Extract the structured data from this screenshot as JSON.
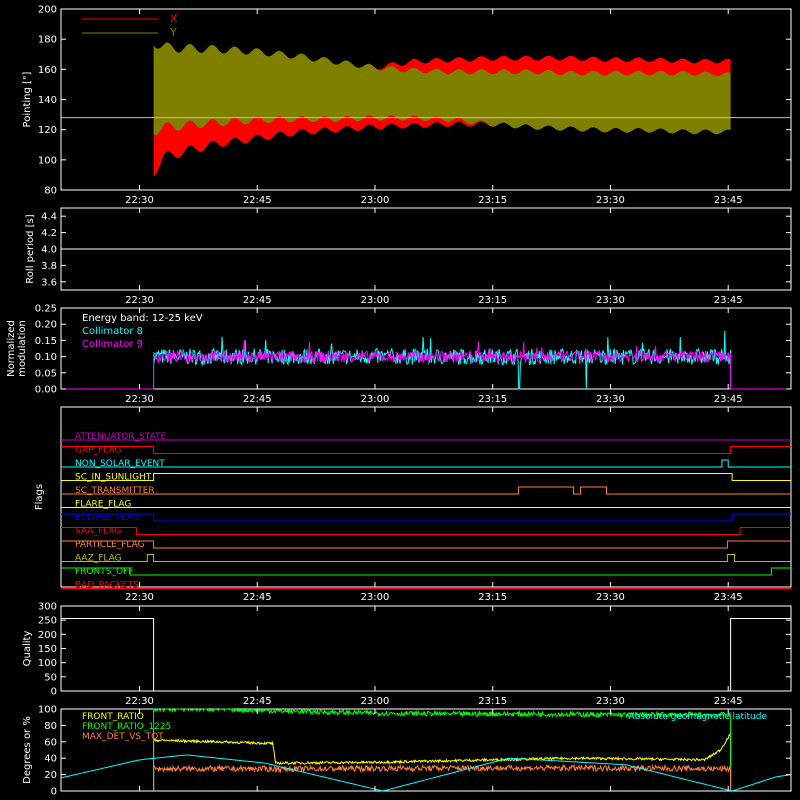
{
  "time_axis": {
    "range": [
      "22:20",
      "23:53"
    ],
    "tick_labels": [
      "22:30",
      "22:45",
      "23:00",
      "23:15",
      "23:30",
      "23:45"
    ],
    "tick_values_min": [
      10,
      25,
      40,
      55,
      70,
      85
    ],
    "range_min": [
      0,
      93
    ]
  },
  "colors": {
    "red": "#ff0000",
    "olive": "#7f7f00",
    "white": "#ffffff",
    "cyan": "#00ffff",
    "magenta": "#ff00ff",
    "orange": "#ff7f3f",
    "yellow": "#ffff00",
    "blue": "#0000ff",
    "green": "#00ff00",
    "flag_olive": "#bfbf00",
    "purple": "#c000c0"
  },
  "chart_data": [
    {
      "type": "area",
      "ylabel": "Pointing [\"]",
      "ylim": [
        80,
        200
      ],
      "y_ticks": [
        80,
        100,
        120,
        140,
        160,
        180,
        200
      ],
      "baseline": 128,
      "legend": [
        {
          "name": "X",
          "color": "#ff0000"
        },
        {
          "name": "Y",
          "color": "#7f7f00"
        }
      ],
      "series": [
        {
          "name": "X",
          "x": [
            11.8,
            13,
            16,
            20,
            25,
            30,
            35,
            40,
            45,
            50,
            55,
            60,
            65,
            70,
            75,
            80,
            85.3
          ],
          "y_upper": [
            130,
            125,
            127,
            131,
            138,
            148,
            157,
            163,
            167,
            168,
            169,
            169,
            169,
            168,
            168,
            167,
            167
          ],
          "y_lower": [
            88,
            98,
            103,
            108,
            112,
            116,
            118,
            120,
            121,
            122,
            122,
            122,
            122,
            122,
            122,
            122,
            122
          ]
        },
        {
          "name": "Y",
          "x": [
            11.8,
            13,
            16,
            20,
            25,
            30,
            35,
            40,
            45,
            50,
            55,
            60,
            65,
            70,
            75,
            80,
            85.3
          ],
          "y_upper": [
            182,
            178,
            177,
            176,
            174,
            171,
            167,
            163,
            161,
            160,
            160,
            160,
            159,
            159,
            159,
            159,
            158
          ],
          "y_lower": [
            116,
            118,
            120,
            122,
            124,
            125,
            125,
            126,
            126,
            125,
            122,
            120,
            119,
            118,
            118,
            117,
            117
          ]
        }
      ]
    },
    {
      "type": "line",
      "ylabel": "Roll period [s]",
      "ylim": [
        3.5,
        4.5
      ],
      "y_ticks": [
        3.6,
        3.8,
        4.0,
        4.2,
        4.4
      ],
      "y_tick_labels": [
        "3.6",
        "3.8",
        "4.0",
        "4.2",
        "4.4"
      ],
      "value": 4.0
    },
    {
      "type": "line",
      "ylabel": "Normalized modulation",
      "ylabel_lines": [
        "Normalized",
        "modulation"
      ],
      "ylim": [
        0,
        0.25
      ],
      "y_ticks": [
        0,
        0.05,
        0.1,
        0.15,
        0.2,
        0.25
      ],
      "y_tick_labels": [
        "0.00",
        "0.05",
        "0.10",
        "0.15",
        "0.20",
        "0.25"
      ],
      "annotation": "Energy band: 12-25 keV",
      "series": [
        {
          "name": "Collimator 8",
          "color": "#00ffff",
          "start": 11.8,
          "end": 85.3,
          "mean": 0.1,
          "dropout": [
            58.3,
            67.0
          ]
        },
        {
          "name": "Collimator 9",
          "color": "#ff00ff",
          "start": 11.8,
          "end": 85.3,
          "mean": 0.1
        }
      ]
    },
    {
      "type": "step",
      "ylabel": "Flags",
      "flags": [
        {
          "name": "ATTENUATOR_STATE",
          "color": "#c000c0",
          "steps": [
            [
              0,
              0
            ]
          ]
        },
        {
          "name": "GAP_FLAG",
          "color": "#ff0000",
          "steps": [
            [
              0,
              1
            ],
            [
              11.8,
              0
            ],
            [
              85.3,
              1
            ]
          ]
        },
        {
          "name": "NON_SOLAR_EVENT",
          "color": "#00ffff",
          "steps": [
            [
              0,
              0
            ],
            [
              84.2,
              1
            ],
            [
              85.0,
              0
            ]
          ]
        },
        {
          "name": "SC_IN_SUNLIGHT",
          "color": "#ffff00",
          "steps": [
            [
              0,
              0
            ],
            [
              11.8,
              1
            ],
            [
              85.5,
              0
            ]
          ]
        },
        {
          "name": "SC_TRANSMITTER",
          "color": "#ff7f3f",
          "steps": [
            [
              0,
              0
            ],
            [
              58.3,
              1
            ],
            [
              65.3,
              0
            ],
            [
              66.2,
              1
            ],
            [
              69.5,
              0
            ]
          ]
        },
        {
          "name": "FLARE_FLAG",
          "color": "#ffff00",
          "steps": [
            [
              0,
              0
            ]
          ]
        },
        {
          "name": "ECLIPSE_FLAG",
          "color": "#0000ff",
          "steps": [
            [
              0,
              1
            ],
            [
              11.8,
              0
            ],
            [
              85.5,
              1
            ]
          ]
        },
        {
          "name": "SAA_FLAG",
          "color": "#ff0000",
          "steps": [
            [
              0,
              1
            ],
            [
              9.6,
              0
            ],
            [
              86.5,
              1
            ]
          ]
        },
        {
          "name": "PARTICLE_FLAG",
          "color": "#ff7f3f",
          "steps": [
            [
              0,
              1
            ],
            [
              11.8,
              0
            ],
            [
              84.9,
              1
            ]
          ]
        },
        {
          "name": "AAZ_FLAG",
          "color": "#bfbf00",
          "steps": [
            [
              0,
              0
            ],
            [
              11.0,
              1
            ],
            [
              11.8,
              0
            ],
            [
              84.9,
              1
            ],
            [
              85.8,
              0
            ]
          ]
        },
        {
          "name": "FRONTS_OFF",
          "color": "#00ff00",
          "steps": [
            [
              0,
              1
            ],
            [
              8.8,
              0
            ],
            [
              90.5,
              1
            ]
          ]
        },
        {
          "name": "BAD_PACKETS",
          "color": "#ff0000",
          "steps": [
            [
              0,
              0
            ]
          ]
        }
      ]
    },
    {
      "type": "line",
      "ylabel": "Quality",
      "ylim": [
        0,
        300
      ],
      "y_ticks": [
        0,
        50,
        100,
        150,
        200,
        250,
        300
      ],
      "steps": [
        [
          0,
          256
        ],
        [
          11.8,
          0
        ],
        [
          85.3,
          256
        ]
      ]
    },
    {
      "type": "line",
      "ylabel": "Degrees or %",
      "ylim": [
        0,
        100
      ],
      "y_ticks": [
        0,
        20,
        40,
        60,
        80,
        100
      ],
      "legend": [
        {
          "name": "FRONT_RATIO",
          "color": "#ffff00"
        },
        {
          "name": "FRONT_RATIO_1225",
          "color": "#00ff00"
        },
        {
          "name": "MAX_DET_VS_TOT",
          "color": "#ff7f3f"
        }
      ],
      "annotation": "Absolute geomagnetic latitude",
      "series": [
        {
          "name": "FRONT_RATIO",
          "color": "#ffff00",
          "x": [
            11.8,
            20,
            27,
            27.3,
            40,
            55,
            65,
            75,
            82,
            84,
            85.3
          ],
          "y": [
            62,
            60,
            58,
            34,
            35,
            38,
            40,
            39,
            38,
            50,
            70
          ]
        },
        {
          "name": "FRONT_RATIO_1225",
          "color": "#00ff00",
          "x": [
            11.8,
            20,
            30,
            40,
            50,
            60,
            70,
            80,
            85.3
          ],
          "y": [
            100,
            100,
            97,
            95,
            94,
            94,
            93,
            93,
            93
          ]
        },
        {
          "name": "MAX_DET_VS_TOT",
          "color": "#ff7f3f",
          "x": [
            11.8,
            30,
            50,
            70,
            85.3
          ],
          "y": [
            27,
            27,
            28,
            28,
            27
          ]
        },
        {
          "name": "Absolute geomagnetic latitude",
          "color": "#00ffff",
          "x": [
            0,
            10,
            16,
            26,
            41,
            57,
            72,
            85.5,
            91,
            93
          ],
          "y": [
            16,
            38,
            44,
            34,
            0,
            40,
            32,
            0,
            17,
            20
          ]
        }
      ]
    }
  ]
}
